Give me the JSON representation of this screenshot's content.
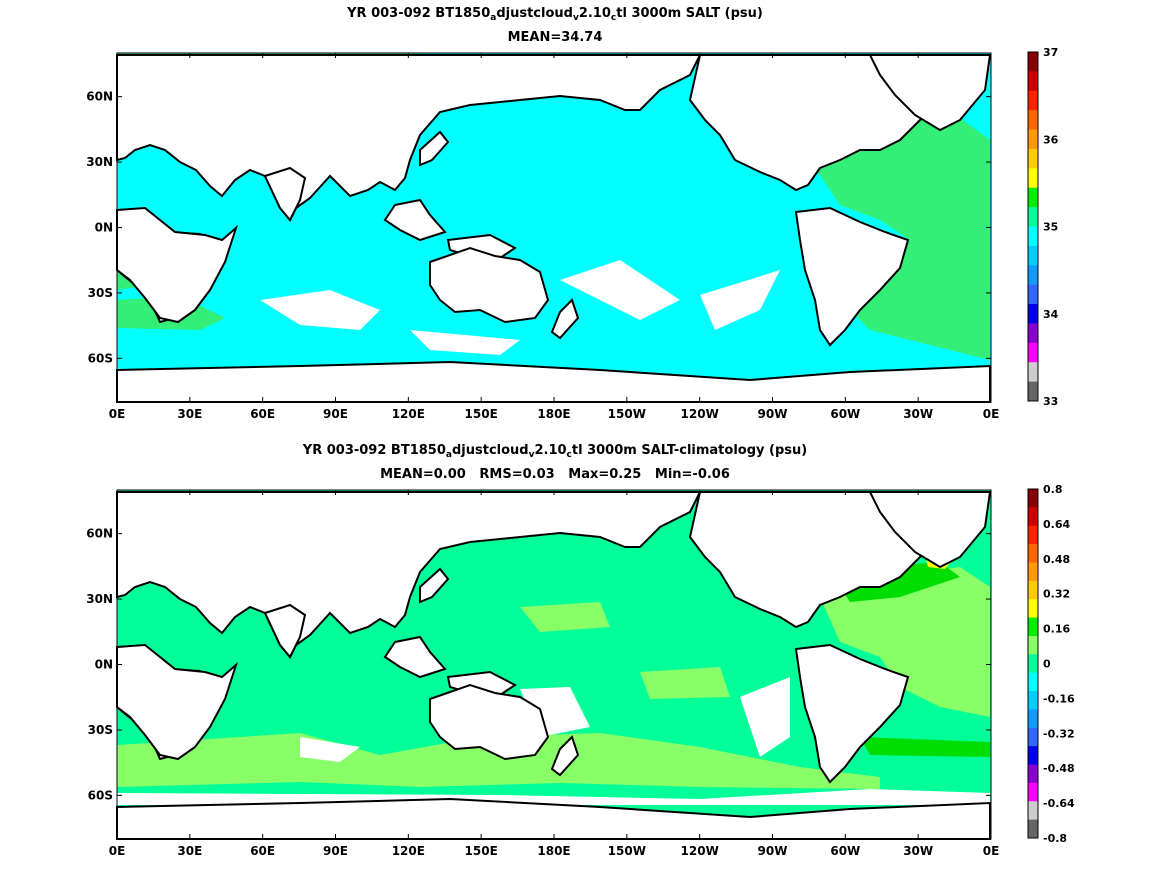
{
  "colors": {
    "ocean_top": "#00ffff",
    "ocean_bottom": "#00ff99",
    "land": "#ffffff",
    "coast": "#000000",
    "top_green": "#33ee77",
    "bottom_light_green": "#88ff66",
    "bottom_green": "#00dd00",
    "bottom_yellow": "#ffff00"
  },
  "top": {
    "title_prefix": "YR 003-092 BT1850",
    "sub1": "a",
    "part2": "djustcloud",
    "sub2": "v",
    "part3": "2.10",
    "sub3": "c",
    "title_suffix": "tl 3000m SALT (psu)",
    "subtitle": "MEAN=34.74",
    "colorbar": {
      "labels": [
        "37",
        "36",
        "35",
        "34",
        "33"
      ],
      "colors": [
        "#880000",
        "#cc0000",
        "#ff2200",
        "#ff6600",
        "#ff9900",
        "#ffcc00",
        "#ffff00",
        "#00ee00",
        "#00ff99",
        "#00ffff",
        "#00ccff",
        "#1199ff",
        "#3366ff",
        "#0000ee",
        "#8800cc",
        "#ff00ff",
        "#cccccc",
        "#666666"
      ]
    }
  },
  "bottom": {
    "title_prefix": "YR 003-092 BT1850",
    "sub1": "a",
    "part2": "djustcloud",
    "sub2": "v",
    "part3": "2.10",
    "sub3": "c",
    "title_suffix": "tl 3000m SALT-climatology (psu)",
    "subtitle": "MEAN=0.00   RMS=0.03   Max=0.25   Min=-0.06",
    "colorbar": {
      "labels": [
        "0.8",
        "0.64",
        "0.48",
        "0.32",
        "0.16",
        "0",
        "-0.16",
        "-0.32",
        "-0.48",
        "-0.64",
        "-0.8"
      ],
      "colors": [
        "#880000",
        "#cc0000",
        "#ff2200",
        "#ff6600",
        "#ff9900",
        "#ffcc00",
        "#ffff00",
        "#00ee00",
        "#88ff66",
        "#00ff99",
        "#00ffff",
        "#00ccff",
        "#1199ff",
        "#3366ff",
        "#0000ee",
        "#8800cc",
        "#ff00ff",
        "#cccccc",
        "#666666"
      ]
    }
  },
  "axes": {
    "x_ticks": [
      "0E",
      "30E",
      "60E",
      "90E",
      "120E",
      "150E",
      "180E",
      "150W",
      "120W",
      "90W",
      "60W",
      "30W",
      "0E"
    ],
    "y_ticks": [
      "60N",
      "30N",
      "0N",
      "30S",
      "60S"
    ]
  }
}
